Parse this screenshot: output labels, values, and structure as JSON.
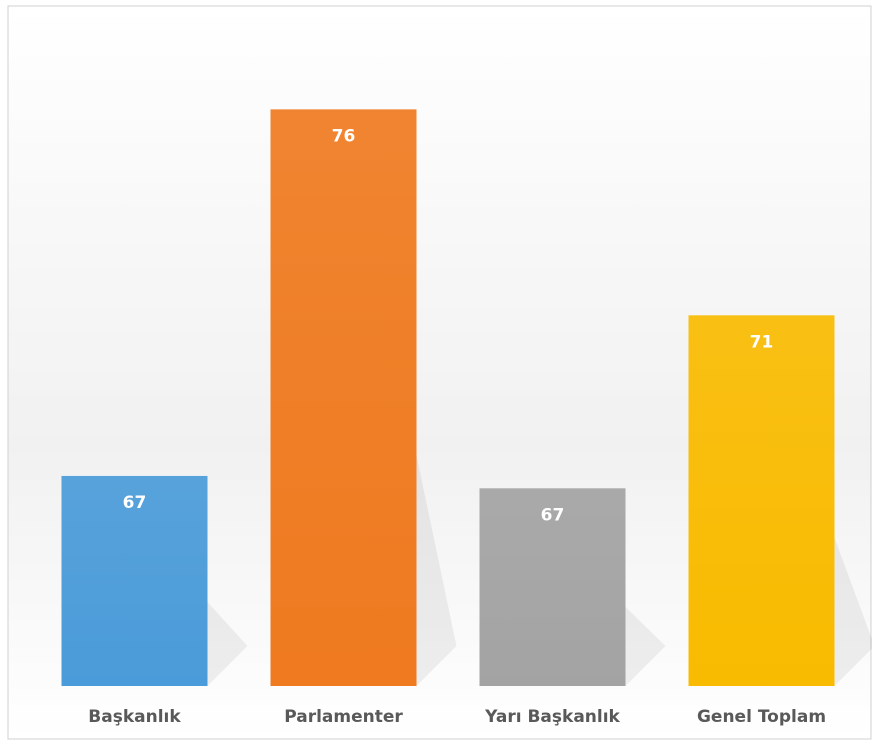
{
  "chart_data": {
    "type": "bar",
    "categories": [
      "Başkanlık",
      "Parlamenter",
      "Yarı Başkanlık",
      "Genel Toplam"
    ],
    "values": [
      67.1,
      76,
      66.8,
      71
    ],
    "value_labels": [
      "67",
      "76",
      "67",
      "71"
    ],
    "colors": [
      "#4a9bd9",
      "#ef7a1f",
      "#a3a3a3",
      "#f9bb00"
    ],
    "ylim": [
      62,
      78
    ]
  }
}
